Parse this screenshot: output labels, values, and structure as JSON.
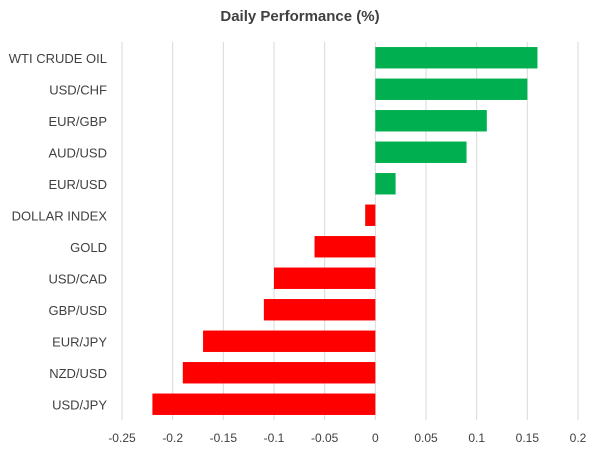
{
  "chart_data": {
    "type": "bar",
    "orientation": "horizontal",
    "title": "Daily Performance (%)",
    "xlabel": "",
    "ylabel": "",
    "categories": [
      "WTI CRUDE OIL",
      "USD/CHF",
      "EUR/GBP",
      "AUD/USD",
      "EUR/USD",
      "DOLLAR INDEX",
      "GOLD",
      "USD/CAD",
      "GBP/USD",
      "EUR/JPY",
      "NZD/USD",
      "USD/JPY"
    ],
    "values": [
      0.16,
      0.15,
      0.11,
      0.09,
      0.02,
      -0.01,
      -0.06,
      -0.1,
      -0.11,
      -0.17,
      -0.19,
      -0.22
    ],
    "xlim": [
      -0.25,
      0.2
    ],
    "xticks": [
      "-0.25",
      "-0.2",
      "-0.15",
      "-0.1",
      "-0.05",
      "0",
      "0.05",
      "0.1",
      "0.15",
      "0.2"
    ],
    "grid": "vertical",
    "legend": "none",
    "colors": {
      "positive": "#00b050",
      "negative": "#ff0000",
      "grid": "#d9d9d9",
      "text": "#404040"
    }
  }
}
